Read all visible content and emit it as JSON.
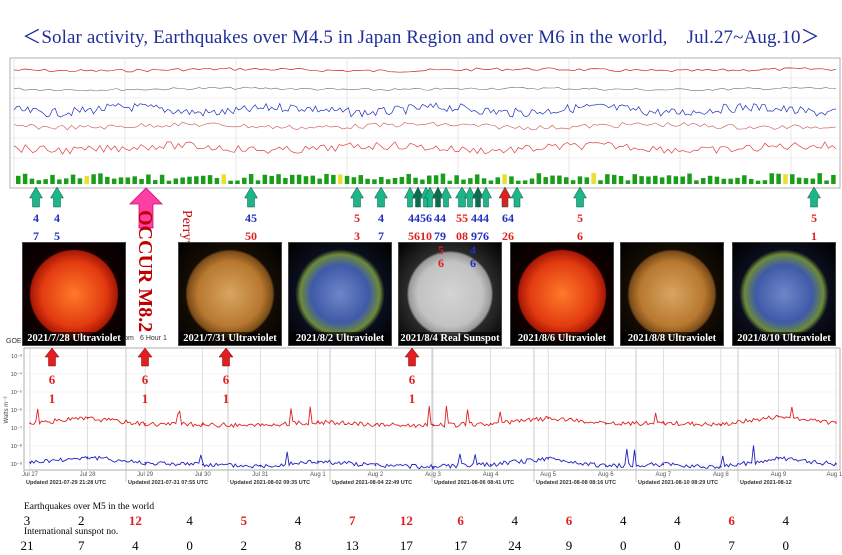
{
  "title": "＜Solar activity, Earthquakes over M4.5 in Japan Region and over M6 in the world,　Jul.27~Aug.10＞",
  "colors": {
    "title": "#1f2f9a",
    "red": "#e02020",
    "blue": "#2020c0",
    "green_arrow": "#1fb58a",
    "pink": "#ff3fa3"
  },
  "occur_label": "OCCUR M8.2",
  "occur_place": "Perryville, Alaska",
  "top_markers": [
    {
      "top": "4",
      "bottom": "7",
      "color": "blue"
    },
    {
      "top": "4",
      "bottom": "5",
      "color": "blue"
    },
    {
      "top": "45",
      "bottom": "50",
      "color": "mixed"
    },
    {
      "top": "5",
      "bottom": "3",
      "color": "red"
    },
    {
      "top": "4",
      "bottom": "7",
      "color": "blue"
    },
    {
      "top": "4456",
      "bottom": "5610",
      "color": "mixed"
    },
    {
      "top": "44",
      "bottom": "79",
      "color": "blue"
    },
    {
      "top": "55",
      "bottom": "08",
      "color": "red"
    },
    {
      "top": "444",
      "bottom": "976",
      "color": "blue"
    },
    {
      "top": "64",
      "bottom": "26",
      "color": "mixed"
    },
    {
      "top": "5",
      "bottom": "6",
      "color": "red"
    },
    {
      "top": "5",
      "bottom": "1",
      "color": "red"
    }
  ],
  "sun_marker_a": "5\n6",
  "sun_marker_b": "4\n6",
  "images": [
    {
      "caption": "2021/7/28 Ultraviolet",
      "style": "red"
    },
    {
      "caption": "2021/7/31 Ultraviolet",
      "style": "orange"
    },
    {
      "caption": "2021/8/2 Ultraviolet",
      "style": "blue"
    },
    {
      "caption": "2021/8/4 Real Sunspot",
      "style": "gray"
    },
    {
      "caption": "2021/8/6 Ultraviolet",
      "style": "red"
    },
    {
      "caption": "2021/8/8 Ultraviolet",
      "style": "orange"
    },
    {
      "caption": "2021/8/10 Ultraviolet",
      "style": "blue"
    }
  ],
  "xray_markers": [
    {
      "top": "6",
      "bottom": "1"
    },
    {
      "top": "6",
      "bottom": "1"
    },
    {
      "top": "6",
      "bottom": "1"
    },
    {
      "top": "6",
      "bottom": "1"
    }
  ],
  "goes_label": "GOES",
  "zoom_label": "Zoom",
  "zoom_options": "6 Hour 1",
  "y_axis_label": "Watts m⁻²",
  "y_ticks": [
    "10⁻³",
    "10⁻⁴",
    "10⁻⁵",
    "10⁻⁶",
    "10⁻⁷",
    "10⁻⁸",
    "10⁻⁹"
  ],
  "date_ticks": [
    "Jul 27",
    "Jul 28",
    "Jul 29",
    "Jul 30",
    "Jul 31",
    "Aug 1",
    "Aug 2",
    "Aug 3",
    "Aug 4",
    "Aug 5",
    "Aug 6",
    "Aug 7",
    "Aug 8",
    "Aug 9",
    "Aug 10"
  ],
  "updated_labels": [
    "Updated 2021-07-29 21:28 UTC",
    "Updated 2021-07-31 07:55 UTC",
    "Updated 2021-08-02 09:35 UTC",
    "Updated 2021-08-04 22:49 UTC",
    "Updated 2021-08-06 08:41 UTC",
    "Updated 2021-08-08 08:16 UTC",
    "Updated 2021-08-10 08:29 UTC",
    "Updated 2021-08-12"
  ],
  "table": {
    "eq_label": "Earthquakes over M5 in the world",
    "sunspot_label": "International sunspot no.",
    "eq_counts": [
      3,
      2,
      12,
      4,
      5,
      4,
      7,
      12,
      6,
      4,
      6,
      4,
      4,
      6,
      4
    ],
    "eq_highlight": [
      false,
      false,
      true,
      false,
      true,
      false,
      true,
      true,
      true,
      false,
      true,
      false,
      false,
      true,
      false
    ],
    "sunspot_numbers": [
      21,
      7,
      4,
      0,
      2,
      8,
      13,
      17,
      17,
      24,
      9,
      0,
      0,
      7,
      0
    ]
  },
  "chart_data": {
    "type": "line",
    "title": "",
    "xlabel": "",
    "ylabel": "Watts m⁻²",
    "y_scale": "log",
    "x": [
      "Jul 27",
      "Jul 28",
      "Jul 29",
      "Jul 30",
      "Jul 31",
      "Aug 1",
      "Aug 2",
      "Aug 3",
      "Aug 4",
      "Aug 5",
      "Aug 6",
      "Aug 7",
      "Aug 8",
      "Aug 9",
      "Aug 10"
    ],
    "series": [
      {
        "color": "#e02020",
        "values": [
          2.2e-07,
          4e-07,
          2e-07,
          1.8e-07,
          1.6e-07,
          2.5e-07,
          1.8e-07,
          1.6e-07,
          2e-07,
          4e-07,
          2e-07,
          2.2e-07,
          1.8e-07,
          5e-07,
          2.2e-07
        ]
      },
      {
        "color": "#2020c0",
        "values": [
          1.6e-09,
          3e-09,
          1.5e-09,
          1.2e-09,
          1e-09,
          1.8e-09,
          1.1e-09,
          9e-10,
          1.2e-09,
          2.5e-09,
          1e-09,
          1.2e-09,
          9e-10,
          2.5e-09,
          1.3e-09
        ]
      }
    ],
    "ylim": [
      1e-09,
      0.001
    ]
  }
}
